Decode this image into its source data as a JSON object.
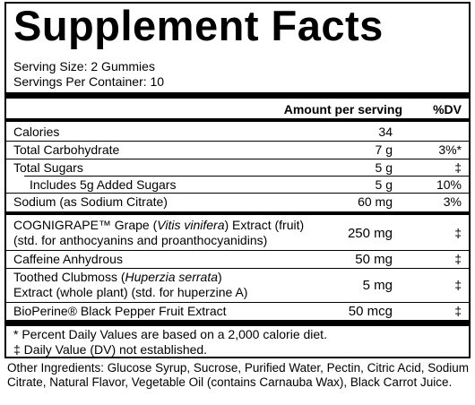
{
  "title": "Supplement Facts",
  "serving_size": "Serving Size: 2 Gummies",
  "servings_per_container": "Servings Per Container: 10",
  "header": {
    "amount": "Amount per serving",
    "dv": "%DV"
  },
  "rows": [
    {
      "name": "Calories",
      "amount": "34",
      "dv": ""
    },
    {
      "name": "Total Carbohydrate",
      "amount": "7 g",
      "dv": "3%*"
    },
    {
      "name": "Total Sugars",
      "amount": "5 g",
      "dv": "‡"
    },
    {
      "name": "Includes 5g Added Sugars",
      "amount": "5 g",
      "dv": "10%"
    },
    {
      "name": "Sodium (as Sodium Citrate)",
      "amount": "60 mg",
      "dv": "3%"
    }
  ],
  "ingredients": [
    {
      "line1_pre": "COGNIGRAPE™ Grape (",
      "line1_italic": "Vitis vinifera",
      "line1_post": ") Extract (fruit)",
      "line2": "(std. for anthocyanins and proanthocyanidins)",
      "amount": "250 mg",
      "dv": "‡"
    },
    {
      "name": "Caffeine Anhydrous",
      "amount": "50 mg",
      "dv": "‡"
    },
    {
      "line1_pre": "Toothed Clubmoss (",
      "line1_italic": "Huperzia serrata",
      "line1_post": ")",
      "line2": "Extract (whole plant) (std. for huperzine A)",
      "amount": "5 mg",
      "dv": "‡"
    },
    {
      "name": "BioPerine® Black Pepper Fruit Extract",
      "amount": "50 mcg",
      "dv": "‡"
    }
  ],
  "footnotes": [
    "* Percent Daily Values are based on a 2,000 calorie diet.",
    "‡ Daily Value (DV) not established."
  ],
  "other_ingredients": "Other Ingredients: Glucose Syrup, Sucrose, Purified Water, Pectin, Citric Acid, Sodium Citrate, Natural Flavor, Vegetable Oil (contains Carnauba Wax), Black Carrot Juice."
}
